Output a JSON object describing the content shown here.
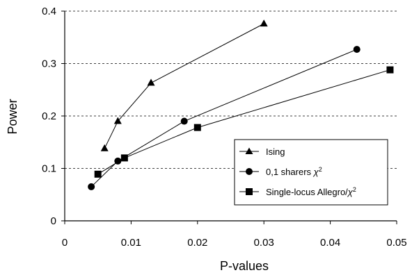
{
  "chart_data": {
    "type": "line",
    "title": "",
    "xlabel": "P-values",
    "ylabel": "Power",
    "xlim": [
      0,
      0.05
    ],
    "ylim": [
      0,
      0.4
    ],
    "xticks": [
      "0",
      "0.01",
      "0.02",
      "0.03",
      "0.04",
      "0.05"
    ],
    "yticks": [
      "0",
      "0.1",
      "0.2",
      "0.3",
      "0.4"
    ],
    "grid": "horizontal dashed",
    "legend_position": "bottom-right",
    "series": [
      {
        "name": "Ising",
        "marker": "triangle",
        "x": [
          0.006,
          0.008,
          0.013,
          0.03
        ],
        "y": [
          0.138,
          0.19,
          0.263,
          0.376
        ]
      },
      {
        "name_main": "0,1 sharers ",
        "name_sym": "χ",
        "name_sup": "2",
        "marker": "circle",
        "x": [
          0.004,
          0.008,
          0.018,
          0.044
        ],
        "y": [
          0.065,
          0.114,
          0.19,
          0.327
        ]
      },
      {
        "name_main": "Single-locus Allegro/",
        "name_sym": "χ",
        "name_sup": "2",
        "marker": "square",
        "x": [
          0.005,
          0.009,
          0.02,
          0.049
        ],
        "y": [
          0.089,
          0.12,
          0.178,
          0.288
        ]
      }
    ]
  }
}
